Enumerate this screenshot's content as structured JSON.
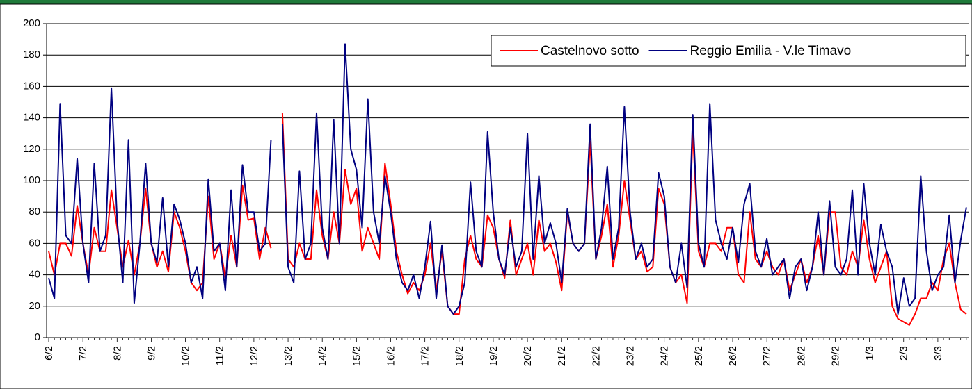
{
  "chart_data": {
    "type": "line",
    "categories": [
      "6/2",
      null,
      null,
      null,
      null,
      null,
      "7/2",
      null,
      null,
      null,
      null,
      null,
      "8/2",
      null,
      null,
      null,
      null,
      null,
      "9/2",
      null,
      null,
      null,
      null,
      null,
      "10/2",
      null,
      null,
      null,
      null,
      null,
      "11/2",
      null,
      null,
      null,
      null,
      null,
      "12/2",
      null,
      null,
      null,
      null,
      null,
      "13/2",
      null,
      null,
      null,
      null,
      null,
      "14/2",
      null,
      null,
      null,
      null,
      null,
      "15/2",
      null,
      null,
      null,
      null,
      null,
      "16/2",
      null,
      null,
      null,
      null,
      null,
      "17/2",
      null,
      null,
      null,
      null,
      null,
      "18/2",
      null,
      null,
      null,
      null,
      null,
      "19/2",
      null,
      null,
      null,
      null,
      null,
      "20/2",
      null,
      null,
      null,
      null,
      null,
      "21/2",
      null,
      null,
      null,
      null,
      null,
      "22/2",
      null,
      null,
      null,
      null,
      null,
      "23/2",
      null,
      null,
      null,
      null,
      null,
      "24/2",
      null,
      null,
      null,
      null,
      null,
      "25/2",
      null,
      null,
      null,
      null,
      null,
      "26/2",
      null,
      null,
      null,
      null,
      null,
      "27/2",
      null,
      null,
      null,
      null,
      null,
      "28/2",
      null,
      null,
      null,
      null,
      null,
      "29/2",
      null,
      null,
      null,
      null,
      null,
      "1/3",
      null,
      null,
      null,
      null,
      null,
      "2/3",
      null,
      null,
      null,
      null,
      null,
      "3/3",
      null,
      null,
      null,
      null,
      null
    ],
    "series": [
      {
        "name": "Castelnovo sotto",
        "color": "#ff0000",
        "values": [
          55,
          40,
          60,
          60,
          52,
          84,
          60,
          40,
          70,
          55,
          55,
          94,
          70,
          45,
          62,
          40,
          60,
          95,
          60,
          45,
          55,
          42,
          80,
          70,
          55,
          35,
          30,
          35,
          90,
          50,
          60,
          38,
          65,
          45,
          97,
          75,
          76,
          50,
          70,
          57,
          null,
          143,
          50,
          45,
          60,
          50,
          50,
          94,
          65,
          50,
          80,
          60,
          107,
          85,
          95,
          55,
          70,
          60,
          50,
          111,
          85,
          55,
          40,
          28,
          35,
          30,
          40,
          60,
          30,
          55,
          20,
          15,
          15,
          50,
          65,
          50,
          45,
          78,
          70,
          50,
          38,
          75,
          40,
          50,
          60,
          40,
          75,
          55,
          60,
          48,
          30,
          80,
          60,
          55,
          60,
          125,
          50,
          65,
          85,
          45,
          65,
          100,
          75,
          50,
          55,
          42,
          45,
          95,
          85,
          45,
          35,
          40,
          22,
          132,
          55,
          45,
          60,
          60,
          55,
          70,
          70,
          40,
          35,
          80,
          50,
          45,
          55,
          45,
          40,
          50,
          30,
          40,
          50,
          35,
          45,
          65,
          40,
          80,
          80,
          45,
          40,
          55,
          45,
          75,
          50,
          35,
          45,
          55,
          20,
          12,
          10,
          8,
          15,
          25,
          25,
          35,
          30,
          50,
          60,
          35,
          18,
          15
        ]
      },
      {
        "name": "Reggio Emilia - V.le Timavo",
        "color": "#000080",
        "values": [
          38,
          25,
          149,
          65,
          60,
          114,
          60,
          35,
          111,
          55,
          65,
          159,
          75,
          35,
          126,
          22,
          60,
          111,
          60,
          48,
          89,
          45,
          85,
          75,
          60,
          35,
          45,
          25,
          101,
          55,
          60,
          30,
          94,
          45,
          110,
          80,
          80,
          55,
          60,
          126,
          null,
          136,
          45,
          35,
          106,
          50,
          60,
          143,
          70,
          50,
          139,
          60,
          187,
          120,
          107,
          70,
          152,
          80,
          60,
          103,
          80,
          50,
          35,
          30,
          40,
          25,
          45,
          74,
          25,
          59,
          20,
          15,
          20,
          35,
          99,
          55,
          45,
          131,
          80,
          50,
          40,
          70,
          45,
          55,
          130,
          50,
          103,
          60,
          73,
          60,
          35,
          82,
          60,
          55,
          60,
          136,
          50,
          70,
          109,
          50,
          70,
          147,
          80,
          50,
          60,
          45,
          50,
          105,
          90,
          45,
          35,
          60,
          32,
          142,
          60,
          45,
          149,
          75,
          60,
          50,
          70,
          48,
          85,
          98,
          55,
          45,
          63,
          40,
          45,
          50,
          25,
          45,
          50,
          30,
          45,
          80,
          40,
          87,
          45,
          40,
          50,
          94,
          40,
          98,
          60,
          40,
          72,
          55,
          45,
          15,
          38,
          20,
          25,
          103,
          55,
          30,
          40,
          45,
          78,
          35,
          62,
          83
        ]
      }
    ],
    "ylim": [
      0,
      200
    ],
    "yticks": [
      0,
      20,
      40,
      60,
      80,
      100,
      120,
      140,
      160,
      180,
      200
    ],
    "grid": true,
    "legend": "top-right"
  }
}
